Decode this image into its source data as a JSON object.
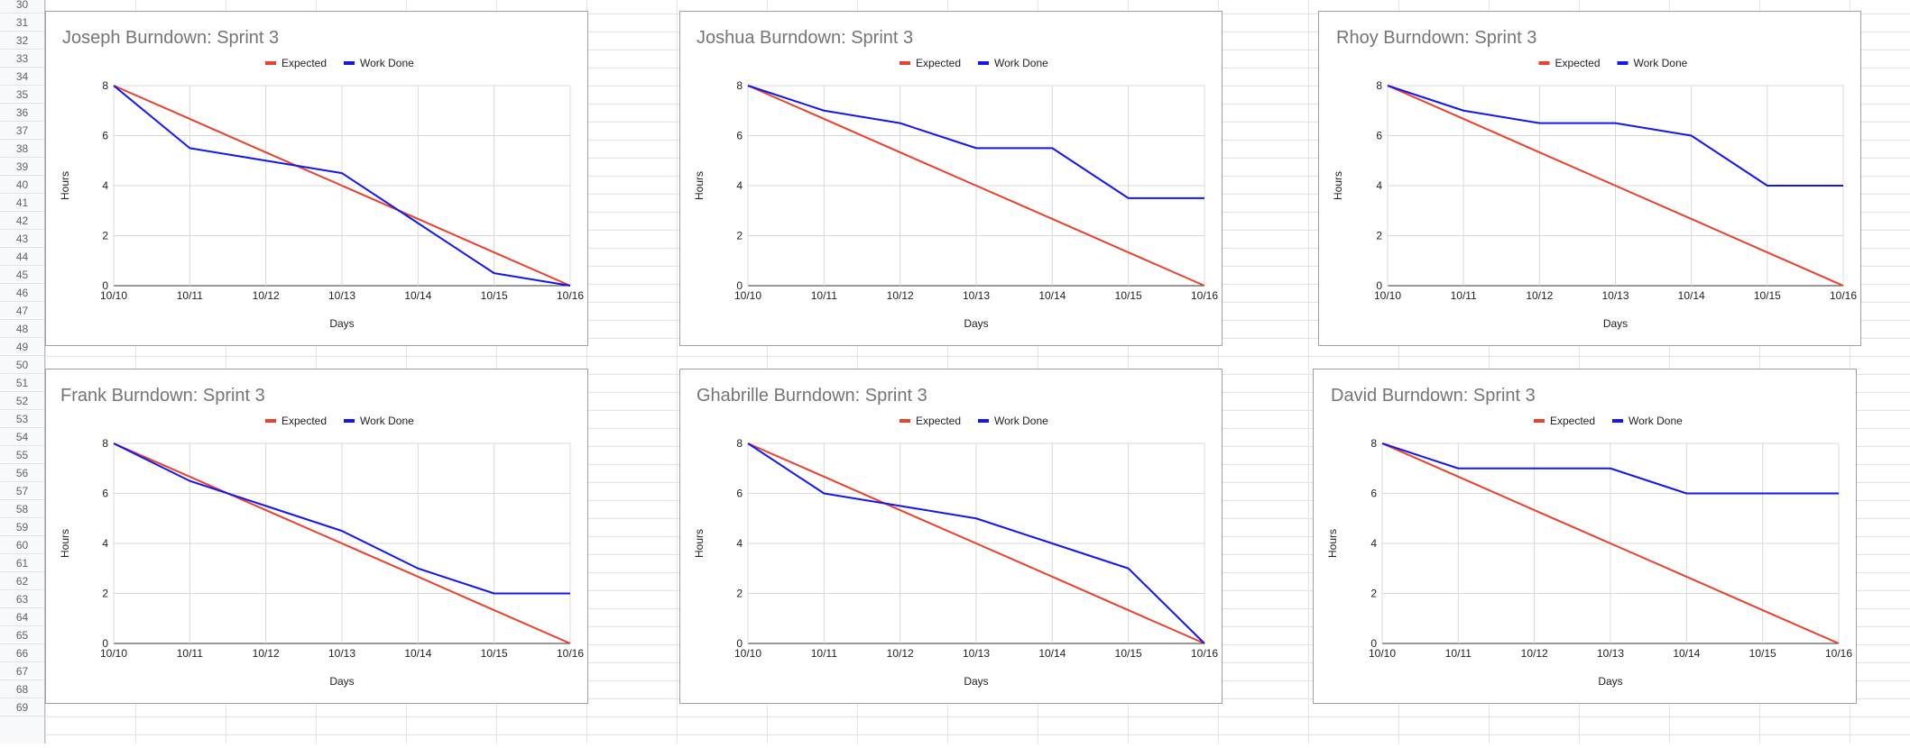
{
  "sheet": {
    "row_numbers": [
      "30",
      "31",
      "32",
      "33",
      "34",
      "35",
      "36",
      "37",
      "38",
      "39",
      "40",
      "41",
      "42",
      "43",
      "44",
      "45",
      "46",
      "47",
      "48",
      "49",
      "50",
      "51",
      "52",
      "53",
      "54",
      "55",
      "56",
      "57",
      "58",
      "59",
      "60",
      "61",
      "62",
      "63",
      "64",
      "65",
      "66",
      "67",
      "68",
      "69"
    ]
  },
  "colors": {
    "expected": "#e8412c",
    "work_done": "#1616f0",
    "grid": "#d9d9d9",
    "text": "#222222",
    "title": "#757575"
  },
  "chart_data": [
    {
      "type": "line",
      "title": "Joseph Burndown: Sprint 3",
      "xlabel": "Days",
      "ylabel": "Hours",
      "categories": [
        "10/10",
        "10/11",
        "10/12",
        "10/13",
        "10/14",
        "10/15",
        "10/16"
      ],
      "ylim": [
        0,
        8
      ],
      "yticks": [
        "0",
        "2",
        "4",
        "6",
        "8"
      ],
      "legend": "top",
      "series": [
        {
          "name": "Expected",
          "values": [
            8,
            6.67,
            5.33,
            4,
            2.67,
            1.33,
            0
          ]
        },
        {
          "name": "Work Done",
          "values": [
            8,
            5.5,
            5,
            4.5,
            2.5,
            0.5,
            0
          ]
        }
      ]
    },
    {
      "type": "line",
      "title": "Joshua Burndown: Sprint 3",
      "xlabel": "Days",
      "ylabel": "Hours",
      "categories": [
        "10/10",
        "10/11",
        "10/12",
        "10/13",
        "10/14",
        "10/15",
        "10/16"
      ],
      "ylim": [
        0,
        8
      ],
      "yticks": [
        "0",
        "2",
        "4",
        "6",
        "8"
      ],
      "legend": "top",
      "series": [
        {
          "name": "Expected",
          "values": [
            8,
            6.67,
            5.33,
            4,
            2.67,
            1.33,
            0
          ]
        },
        {
          "name": "Work Done",
          "values": [
            8,
            7,
            6.5,
            5.5,
            5.5,
            3.5,
            3.5
          ]
        }
      ]
    },
    {
      "type": "line",
      "title": "Rhoy Burndown: Sprint 3",
      "xlabel": "Days",
      "ylabel": "Hours",
      "categories": [
        "10/10",
        "10/11",
        "10/12",
        "10/13",
        "10/14",
        "10/15",
        "10/16"
      ],
      "ylim": [
        0,
        8
      ],
      "yticks": [
        "0",
        "2",
        "4",
        "6",
        "8"
      ],
      "legend": "top",
      "series": [
        {
          "name": "Expected",
          "values": [
            8,
            6.67,
            5.33,
            4,
            2.67,
            1.33,
            0
          ]
        },
        {
          "name": "Work Done",
          "values": [
            8,
            7,
            6.5,
            6.5,
            6,
            4,
            4
          ]
        }
      ]
    },
    {
      "type": "line",
      "title": "Frank Burndown: Sprint 3",
      "xlabel": "Days",
      "ylabel": "Hours",
      "categories": [
        "10/10",
        "10/11",
        "10/12",
        "10/13",
        "10/14",
        "10/15",
        "10/16"
      ],
      "ylim": [
        0,
        8
      ],
      "yticks": [
        "0",
        "2",
        "4",
        "6",
        "8"
      ],
      "legend": "top",
      "series": [
        {
          "name": "Expected",
          "values": [
            8,
            6.67,
            5.33,
            4,
            2.67,
            1.33,
            0
          ]
        },
        {
          "name": "Work Done",
          "values": [
            8,
            6.5,
            5.5,
            4.5,
            3,
            2,
            2
          ]
        }
      ]
    },
    {
      "type": "line",
      "title": "Ghabrille Burndown: Sprint 3",
      "xlabel": "Days",
      "ylabel": "Hours",
      "categories": [
        "10/10",
        "10/11",
        "10/12",
        "10/13",
        "10/14",
        "10/15",
        "10/16"
      ],
      "ylim": [
        0,
        8
      ],
      "yticks": [
        "0",
        "2",
        "4",
        "6",
        "8"
      ],
      "legend": "top",
      "series": [
        {
          "name": "Expected",
          "values": [
            8,
            6.67,
            5.33,
            4,
            2.67,
            1.33,
            0
          ]
        },
        {
          "name": "Work Done",
          "values": [
            8,
            6,
            5.5,
            5,
            4,
            3,
            0
          ]
        }
      ]
    },
    {
      "type": "line",
      "title": "David Burndown: Sprint 3",
      "xlabel": "Days",
      "ylabel": "Hours",
      "categories": [
        "10/10",
        "10/11",
        "10/12",
        "10/13",
        "10/14",
        "10/15",
        "10/16"
      ],
      "ylim": [
        0,
        8
      ],
      "yticks": [
        "0",
        "2",
        "4",
        "6",
        "8"
      ],
      "legend": "top",
      "series": [
        {
          "name": "Expected",
          "values": [
            8,
            6.67,
            5.33,
            4,
            2.67,
            1.33,
            0
          ]
        },
        {
          "name": "Work Done",
          "values": [
            8,
            7,
            7,
            7,
            6,
            6,
            6
          ]
        }
      ]
    }
  ]
}
